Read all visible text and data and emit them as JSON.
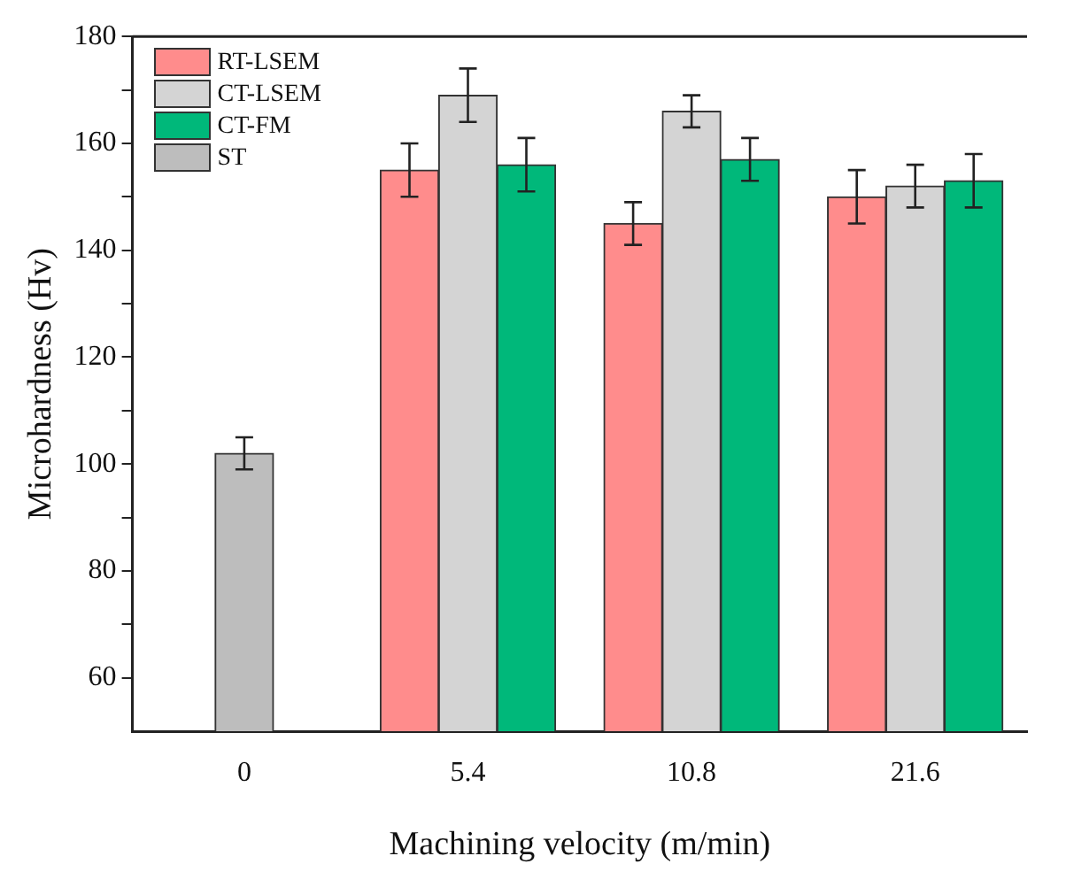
{
  "chart_data": {
    "type": "bar",
    "xlabel": "Machining velocity (m/min)",
    "ylabel": "Microhardness (Hv)",
    "categories": [
      "0",
      "5.4",
      "10.8",
      "21.6"
    ],
    "series": [
      {
        "name": "RT-LSEM",
        "color": "#ff8c8c",
        "values": [
          null,
          155,
          145,
          150
        ],
        "errors": [
          null,
          5,
          4,
          5
        ]
      },
      {
        "name": "CT-LSEM",
        "color": "#d4d4d4",
        "values": [
          null,
          169,
          166,
          152
        ],
        "errors": [
          null,
          5,
          3,
          4
        ]
      },
      {
        "name": "CT-FM",
        "color": "#00b87a",
        "values": [
          null,
          156,
          157,
          153
        ],
        "errors": [
          null,
          5,
          4,
          5
        ]
      },
      {
        "name": "ST",
        "color": "#bdbdbd",
        "values": [
          102,
          null,
          null,
          null
        ],
        "errors": [
          3,
          null,
          null,
          null
        ]
      }
    ],
    "ylim": [
      50,
      180
    ],
    "yticks": [
      60,
      {
        "value": 70,
        "label": null
      },
      80,
      {
        "value": 90,
        "label": null
      },
      100,
      {
        "value": 110,
        "label": null
      },
      120,
      {
        "value": 130,
        "label": null
      },
      140,
      {
        "value": 150,
        "label": null
      },
      160,
      {
        "value": 170,
        "label": null
      },
      180
    ],
    "grid": false,
    "legend": "top left"
  }
}
